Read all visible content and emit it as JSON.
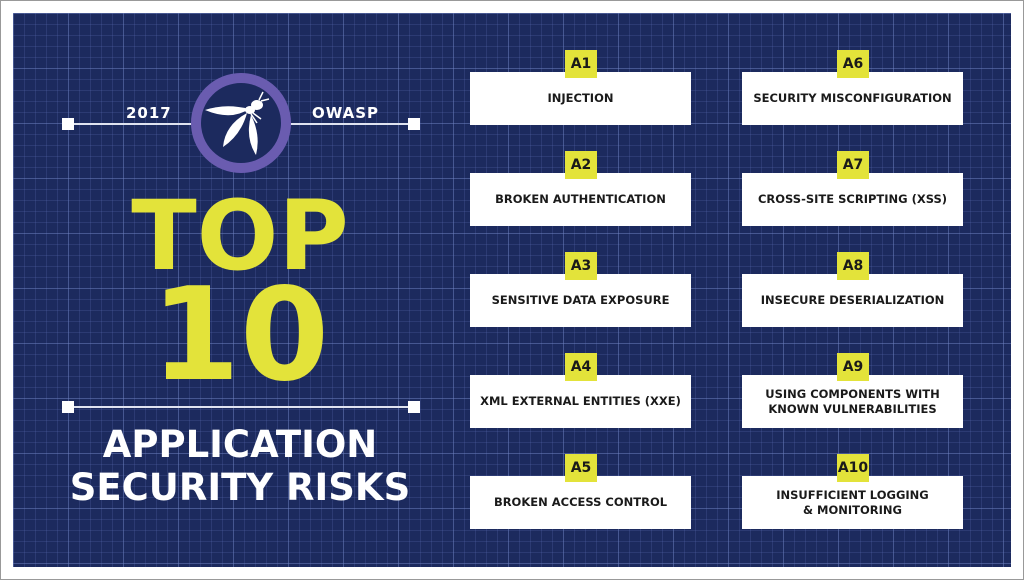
{
  "header": {
    "year": "2017",
    "org": "OWASP",
    "logo": "owasp-wasp-logo"
  },
  "headline": {
    "top": "TOP",
    "number": "10",
    "subtitle_line1": "APPLICATION",
    "subtitle_line2": "SECURITY RISKS"
  },
  "colors": {
    "background": "#1c2a5e",
    "accent": "#e3e33a",
    "ring": "#6a5cb0"
  },
  "risks": [
    {
      "id": "A1",
      "line1": "INJECTION",
      "line2": ""
    },
    {
      "id": "A2",
      "line1": "BROKEN AUTHENTICATION",
      "line2": ""
    },
    {
      "id": "A3",
      "line1": "SENSITIVE DATA EXPOSURE",
      "line2": ""
    },
    {
      "id": "A4",
      "line1": "XML EXTERNAL ENTITIES (XXE)",
      "line2": ""
    },
    {
      "id": "A5",
      "line1": "BROKEN ACCESS CONTROL",
      "line2": ""
    },
    {
      "id": "A6",
      "line1": "SECURITY MISCONFIGURATION",
      "line2": ""
    },
    {
      "id": "A7",
      "line1": "CROSS-SITE SCRIPTING (XSS)",
      "line2": ""
    },
    {
      "id": "A8",
      "line1": "INSECURE DESERIALIZATION",
      "line2": ""
    },
    {
      "id": "A9",
      "line1": "USING COMPONENTS WITH",
      "line2": "KNOWN VULNERABILITIES"
    },
    {
      "id": "A10",
      "line1": "INSUFFICIENT LOGGING",
      "line2": "& MONITORING"
    }
  ]
}
